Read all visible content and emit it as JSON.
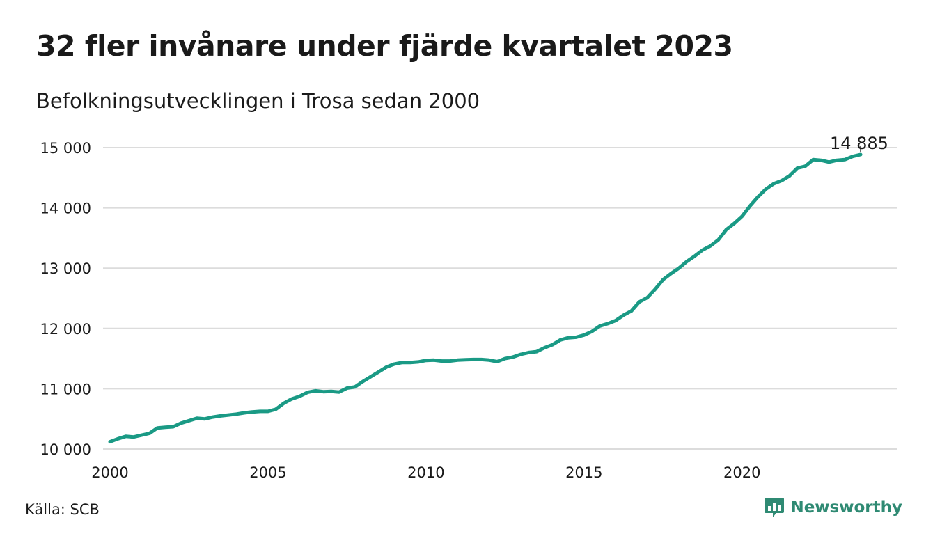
{
  "title": "32 fler invånare under fjärde kvartalet 2023",
  "subtitle": "Befolkningsutvecklingen i Trosa sedan 2000",
  "source": "Källa: SCB",
  "brand": {
    "name": "Newsworthy",
    "icon": "chart-bubble-icon",
    "color": "#2f8a73"
  },
  "colors": {
    "line": "#1a9a85",
    "grid": "#dcdcdc"
  },
  "chart_data": {
    "type": "line",
    "title": "32 fler invånare under fjärde kvartalet 2023",
    "subtitle": "Befolkningsutvecklingen i Trosa sedan 2000",
    "xlabel": "",
    "ylabel": "",
    "xlim": [
      2000,
      2024.5
    ],
    "ylim": [
      10000,
      15000
    ],
    "x_ticks": [
      2000,
      2005,
      2010,
      2015,
      2020
    ],
    "x_tick_labels": [
      "2000",
      "2005",
      "2010",
      "2015",
      "2020"
    ],
    "y_ticks": [
      10000,
      11000,
      12000,
      13000,
      14000,
      15000
    ],
    "y_tick_labels": [
      "10 000",
      "11 000",
      "12 000",
      "13 000",
      "14 000",
      "15 000"
    ],
    "grid": "horizontal",
    "end_label": "14 885",
    "series": [
      {
        "color": "#1a9a85",
        "x": [
          2000,
          2000.25,
          2000.5,
          2000.75,
          2001,
          2001.25,
          2001.5,
          2001.75,
          2002,
          2002.25,
          2002.5,
          2002.75,
          2003,
          2003.25,
          2003.5,
          2003.75,
          2004,
          2004.25,
          2004.5,
          2004.75,
          2005,
          2005.25,
          2005.5,
          2005.75,
          2006,
          2006.25,
          2006.5,
          2006.75,
          2007,
          2007.25,
          2007.5,
          2007.75,
          2008,
          2008.25,
          2008.5,
          2008.75,
          2009,
          2009.25,
          2009.5,
          2009.75,
          2010,
          2010.25,
          2010.5,
          2010.75,
          2011,
          2011.25,
          2011.5,
          2011.75,
          2012,
          2012.25,
          2012.5,
          2012.75,
          2013,
          2013.25,
          2013.5,
          2013.75,
          2014,
          2014.25,
          2014.5,
          2014.75,
          2015,
          2015.25,
          2015.5,
          2015.75,
          2016,
          2016.25,
          2016.5,
          2016.75,
          2017,
          2017.25,
          2017.5,
          2017.75,
          2018,
          2018.25,
          2018.5,
          2018.75,
          2019,
          2019.25,
          2019.5,
          2019.75,
          2020,
          2020.25,
          2020.5,
          2020.75,
          2021,
          2021.25,
          2021.5,
          2021.75,
          2022,
          2022.25,
          2022.5,
          2022.75,
          2023,
          2023.25,
          2023.5,
          2023.75
        ],
        "values": [
          10120,
          10170,
          10210,
          10200,
          10230,
          10260,
          10350,
          10360,
          10370,
          10430,
          10470,
          10510,
          10500,
          10530,
          10550,
          10565,
          10580,
          10600,
          10615,
          10625,
          10625,
          10660,
          10760,
          10830,
          10875,
          10940,
          10965,
          10950,
          10955,
          10945,
          11010,
          11030,
          11120,
          11200,
          11280,
          11360,
          11410,
          11435,
          11435,
          11445,
          11470,
          11475,
          11460,
          11460,
          11475,
          11480,
          11485,
          11485,
          11475,
          11450,
          11500,
          11525,
          11570,
          11600,
          11615,
          11680,
          11730,
          11810,
          11845,
          11855,
          11890,
          11950,
          12040,
          12080,
          12130,
          12220,
          12290,
          12440,
          12510,
          12650,
          12810,
          12910,
          13000,
          13110,
          13200,
          13300,
          13370,
          13470,
          13640,
          13740,
          13860,
          14030,
          14180,
          14310,
          14400,
          14450,
          14530,
          14660,
          14690,
          14800,
          14790,
          14760,
          14790,
          14800,
          14853,
          14885
        ]
      }
    ]
  }
}
